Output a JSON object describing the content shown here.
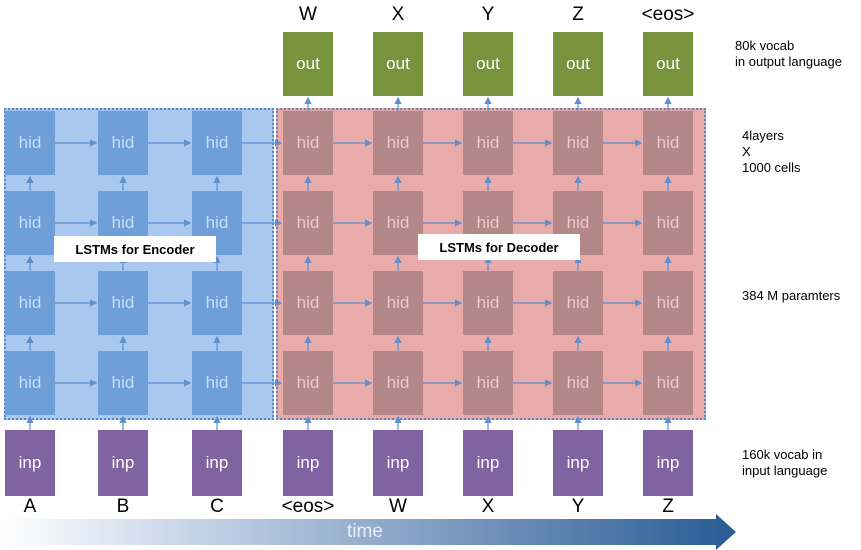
{
  "time_label": "time",
  "out_label": "out",
  "hid_label": "hid",
  "inp_label": "inp",
  "encoder_label": "LSTMs for Encoder",
  "decoder_label": "LSTMs for Decoder",
  "output_tokens": [
    "W",
    "X",
    "Y",
    "Z",
    "<eos>"
  ],
  "input_tokens": [
    "A",
    "B",
    "C",
    "<eos>",
    "W",
    "X",
    "Y",
    "Z"
  ],
  "notes": {
    "vocab_out": "80k vocab\nin output language",
    "layers": "4layers\nX\n1000 cells",
    "params": "384 M paramters",
    "vocab_in": "160k vocab in\ninput language"
  },
  "colors": {
    "encoder_bg": "#a9c8ef",
    "decoder_bg": "#e9aaaa",
    "hid_encoder": "#6f9fd8",
    "hid_decoder": "#b48888",
    "inp": "#8064a2",
    "out": "#77933c",
    "time_arrow": "#2e5e96"
  }
}
